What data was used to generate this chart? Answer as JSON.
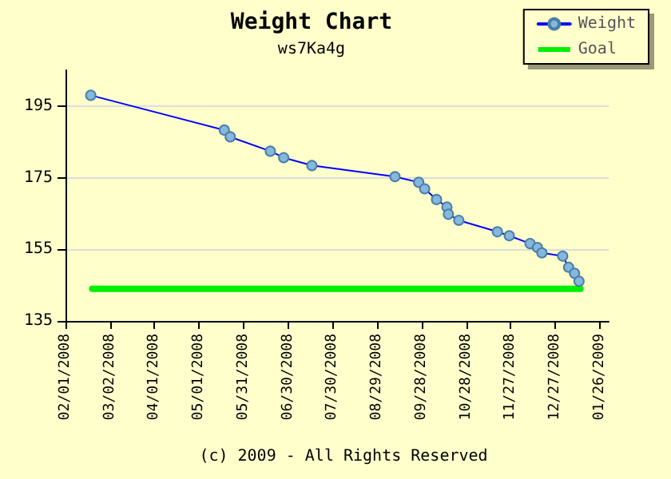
{
  "chart_data": {
    "type": "line",
    "title": "Weight Chart",
    "subtitle": "ws7Ka4g",
    "annotations": [
      "(c) 2009 - All Rights Reserved"
    ],
    "series": [
      {
        "name": "Weight",
        "color": "#0000ff",
        "marker": "circle",
        "x": [
          "2008-02-18",
          "2008-05-18",
          "2008-05-22",
          "2008-06-18",
          "2008-06-27",
          "2008-07-16",
          "2008-09-10",
          "2008-09-26",
          "2008-09-30",
          "2008-10-08",
          "2008-10-15",
          "2008-10-16",
          "2008-10-23",
          "2008-11-18",
          "2008-11-26",
          "2008-12-10",
          "2008-12-15",
          "2008-12-18",
          "2009-01-01",
          "2009-01-05",
          "2009-01-09",
          "2009-01-12"
        ],
        "values": [
          198,
          188.3,
          186.4,
          182.4,
          180.6,
          178.4,
          175.3,
          173.7,
          171.9,
          168.9,
          166.8,
          164.8,
          163.1,
          159.9,
          158.8,
          156.6,
          155.5,
          154,
          153.1,
          150,
          148.3,
          146.1
        ]
      },
      {
        "name": "Goal",
        "color": "#00ee00",
        "marker": "none",
        "x": [
          "2008-02-19",
          "2009-01-13"
        ],
        "values": [
          144,
          144
        ]
      }
    ],
    "xlim": [
      "2008-02-01",
      "2009-02-01"
    ],
    "xticks": [
      {
        "value": "2008-02-01",
        "label": "02/01/2008"
      },
      {
        "value": "2008-03-02",
        "label": "03/02/2008"
      },
      {
        "value": "2008-04-01",
        "label": "04/01/2008"
      },
      {
        "value": "2008-05-01",
        "label": "05/01/2008"
      },
      {
        "value": "2008-05-31",
        "label": "05/31/2008"
      },
      {
        "value": "2008-06-30",
        "label": "06/30/2008"
      },
      {
        "value": "2008-07-30",
        "label": "07/30/2008"
      },
      {
        "value": "2008-08-29",
        "label": "08/29/2008"
      },
      {
        "value": "2008-09-28",
        "label": "09/28/2008"
      },
      {
        "value": "2008-10-28",
        "label": "10/28/2008"
      },
      {
        "value": "2008-11-27",
        "label": "11/27/2008"
      },
      {
        "value": "2008-12-27",
        "label": "12/27/2008"
      },
      {
        "value": "2009-01-26",
        "label": "01/26/2009"
      }
    ],
    "ylim": [
      135,
      205
    ],
    "yticks": [
      135,
      155,
      175,
      195
    ],
    "grid": "y",
    "legend": "top right",
    "line_style": "solid"
  }
}
